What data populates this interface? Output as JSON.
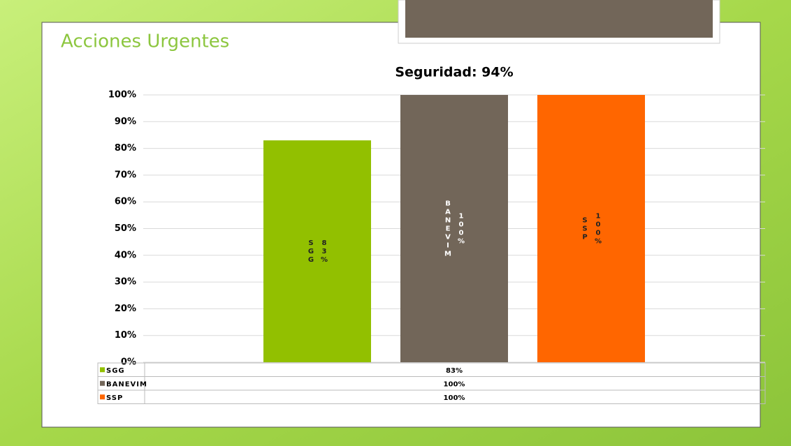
{
  "slide_title": "Acciones Urgentes",
  "chart_data": {
    "type": "bar",
    "title": "Seguridad: 94%",
    "series": [
      {
        "name": "SGG",
        "color": "#92c000",
        "values": [
          83
        ],
        "value_labels": [
          "83%"
        ]
      },
      {
        "name": "BANEVIM",
        "color": "#726659",
        "values": [
          100
        ],
        "value_labels": [
          "100%"
        ]
      },
      {
        "name": "SSP",
        "color": "#ff6600",
        "values": [
          100
        ],
        "value_labels": [
          "100%"
        ]
      }
    ],
    "ylim": [
      0,
      100
    ],
    "yticks": [
      {
        "value": 0,
        "label": "0%"
      },
      {
        "value": 10,
        "label": "10%"
      },
      {
        "value": 20,
        "label": "20%"
      },
      {
        "value": 30,
        "label": "30%"
      },
      {
        "value": 40,
        "label": "40%"
      },
      {
        "value": 50,
        "label": "50%"
      },
      {
        "value": 60,
        "label": "60%"
      },
      {
        "value": 70,
        "label": "70%"
      },
      {
        "value": 80,
        "label": "80%"
      },
      {
        "value": 90,
        "label": "90%"
      },
      {
        "value": 100,
        "label": "100%"
      }
    ],
    "grid": true
  }
}
